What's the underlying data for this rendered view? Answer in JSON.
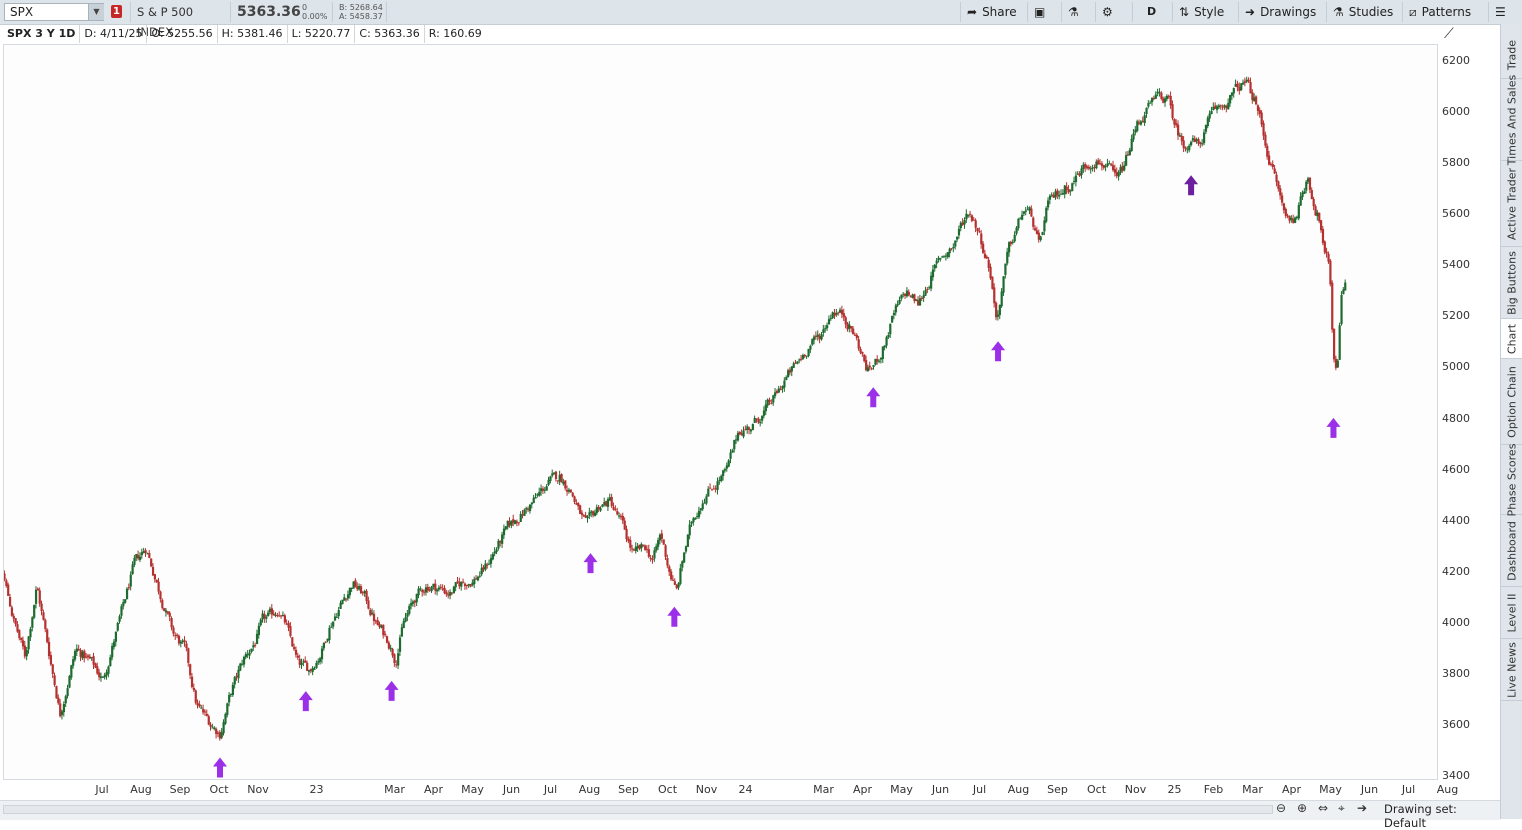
{
  "toolbar": {
    "symbol": "SPX",
    "badge": "1",
    "description": "S & P 500 INDEX",
    "last": "5363.36",
    "change": "0",
    "change_pct": "0.00%",
    "bid": "B: 5268.64",
    "ask": "A: 5458.37",
    "share": "Share",
    "timeframe": "D",
    "style": "Style",
    "drawings": "Drawings",
    "studies": "Studies",
    "patterns": "Patterns"
  },
  "info": {
    "title": "SPX 3 Y 1D",
    "date": "D: 4/11/25",
    "open": "O: 5255.56",
    "high": "H: 5381.46",
    "low": "L: 5220.77",
    "close": "C: 5363.36",
    "range": "R: 160.69"
  },
  "sidebar": {
    "tabs": [
      "Trade",
      "Times And Sales",
      "Active Trader",
      "Big Buttons",
      "Chart",
      "Option Chain",
      "Phase Scores",
      "Dashboard",
      "Level II",
      "Live News"
    ]
  },
  "footer": {
    "drawing_set": "Drawing set: Default"
  },
  "colors": {
    "up": "#1d6b2f",
    "down": "#b5312f",
    "arrow": "#9b30e8",
    "arrow_dark": "#6c1f9e"
  },
  "chart_data": {
    "type": "candlestick",
    "y_ticks": [
      "6200",
      "6000",
      "5800",
      "5600",
      "5400",
      "5200",
      "5000",
      "4800",
      "4600",
      "4400",
      "4200",
      "4000",
      "3800",
      "3600",
      "3400"
    ],
    "ylim": [
      3400,
      6250
    ],
    "x_ticks": [
      "Jul",
      "Aug",
      "Sep",
      "Oct",
      "Nov",
      "23",
      "Mar",
      "Apr",
      "May",
      "Jun",
      "Jul",
      "Aug",
      "Sep",
      "Oct",
      "Nov",
      "24",
      "Mar",
      "Apr",
      "May",
      "Jun",
      "Jul",
      "Aug",
      "Sep",
      "Oct",
      "Nov",
      "25",
      "Feb",
      "Mar",
      "Apr",
      "May",
      "Jun",
      "Jul",
      "Aug"
    ],
    "x_tick_months": [
      0.5,
      1.5,
      2.5,
      3.5,
      4.5,
      6,
      8,
      9,
      10,
      11,
      12,
      13,
      14,
      15,
      16,
      17,
      19,
      20,
      21,
      22,
      23,
      24,
      25,
      26,
      27,
      28,
      29,
      30,
      31,
      32,
      33,
      34,
      35
    ],
    "x_start_month": -2.6,
    "x_end_month": 35.4,
    "anchors": [
      [
        -2.6,
        4450
      ],
      [
        -2.2,
        4280
      ],
      [
        -1.8,
        4020
      ],
      [
        -1.5,
        3870
      ],
      [
        -1.2,
        4150
      ],
      [
        -0.9,
        3900
      ],
      [
        -0.6,
        3650
      ],
      [
        -0.2,
        3900
      ],
      [
        0.2,
        3850
      ],
      [
        0.5,
        3780
      ],
      [
        0.9,
        4000
      ],
      [
        1.3,
        4230
      ],
      [
        1.6,
        4300
      ],
      [
        2.0,
        4100
      ],
      [
        2.3,
        3960
      ],
      [
        2.6,
        3900
      ],
      [
        2.9,
        3680
      ],
      [
        3.3,
        3600
      ],
      [
        3.5,
        3570
      ],
      [
        3.8,
        3740
      ],
      [
        4.1,
        3860
      ],
      [
        4.4,
        3930
      ],
      [
        4.6,
        4010
      ],
      [
        4.8,
        4030
      ],
      [
        5.0,
        4060
      ],
      [
        5.2,
        3990
      ],
      [
        5.5,
        3840
      ],
      [
        5.8,
        3820
      ],
      [
        6.1,
        3890
      ],
      [
        6.3,
        3990
      ],
      [
        6.6,
        4080
      ],
      [
        6.9,
        4160
      ],
      [
        7.2,
        4110
      ],
      [
        7.5,
        4000
      ],
      [
        7.8,
        3940
      ],
      [
        8.0,
        3860
      ],
      [
        8.2,
        4000
      ],
      [
        8.5,
        4100
      ],
      [
        8.8,
        4150
      ],
      [
        9.1,
        4140
      ],
      [
        9.4,
        4120
      ],
      [
        9.7,
        4160
      ],
      [
        10.0,
        4170
      ],
      [
        10.3,
        4220
      ],
      [
        10.6,
        4300
      ],
      [
        10.9,
        4380
      ],
      [
        11.3,
        4440
      ],
      [
        11.6,
        4490
      ],
      [
        11.9,
        4550
      ],
      [
        12.2,
        4580
      ],
      [
        12.5,
        4520
      ],
      [
        12.7,
        4440
      ],
      [
        12.9,
        4380
      ],
      [
        13.2,
        4460
      ],
      [
        13.5,
        4480
      ],
      [
        13.8,
        4390
      ],
      [
        14.1,
        4270
      ],
      [
        14.4,
        4300
      ],
      [
        14.6,
        4250
      ],
      [
        14.8,
        4350
      ],
      [
        15.0,
        4220
      ],
      [
        15.2,
        4120
      ],
      [
        15.4,
        4280
      ],
      [
        15.6,
        4400
      ],
      [
        15.9,
        4500
      ],
      [
        16.2,
        4550
      ],
      [
        16.5,
        4600
      ],
      [
        16.8,
        4760
      ],
      [
        17.1,
        4770
      ],
      [
        17.4,
        4820
      ],
      [
        17.7,
        4880
      ],
      [
        18.0,
        4960
      ],
      [
        18.3,
        5020
      ],
      [
        18.6,
        5090
      ],
      [
        18.9,
        5130
      ],
      [
        19.2,
        5230
      ],
      [
        19.5,
        5210
      ],
      [
        19.8,
        5120
      ],
      [
        20.1,
        4990
      ],
      [
        20.3,
        5020
      ],
      [
        20.5,
        5080
      ],
      [
        20.8,
        5220
      ],
      [
        21.1,
        5300
      ],
      [
        21.4,
        5250
      ],
      [
        21.7,
        5350
      ],
      [
        22.0,
        5440
      ],
      [
        22.3,
        5480
      ],
      [
        22.5,
        5560
      ],
      [
        22.7,
        5620
      ],
      [
        22.9,
        5560
      ],
      [
        23.1,
        5460
      ],
      [
        23.25,
        5380
      ],
      [
        23.4,
        5200
      ],
      [
        23.5,
        5260
      ],
      [
        23.7,
        5450
      ],
      [
        23.9,
        5540
      ],
      [
        24.1,
        5620
      ],
      [
        24.3,
        5600
      ],
      [
        24.5,
        5470
      ],
      [
        24.7,
        5630
      ],
      [
        25.0,
        5690
      ],
      [
        25.3,
        5720
      ],
      [
        25.6,
        5780
      ],
      [
        25.9,
        5820
      ],
      [
        26.2,
        5800
      ],
      [
        26.5,
        5730
      ],
      [
        26.7,
        5800
      ],
      [
        27.0,
        5950
      ],
      [
        27.3,
        6020
      ],
      [
        27.6,
        6070
      ],
      [
        27.8,
        6050
      ],
      [
        28.0,
        5950
      ],
      [
        28.2,
        5870
      ],
      [
        28.4,
        5900
      ],
      [
        28.6,
        5870
      ],
      [
        28.8,
        5950
      ],
      [
        29.0,
        6010
      ],
      [
        29.3,
        6040
      ],
      [
        29.6,
        6100
      ],
      [
        29.8,
        6120
      ],
      [
        30.0,
        6060
      ],
      [
        30.2,
        5960
      ],
      [
        30.4,
        5820
      ],
      [
        30.6,
        5720
      ],
      [
        30.8,
        5600
      ],
      [
        31.0,
        5580
      ],
      [
        31.2,
        5650
      ],
      [
        31.4,
        5760
      ],
      [
        31.55,
        5640
      ],
      [
        31.7,
        5580
      ],
      [
        31.8,
        5450
      ],
      [
        31.95,
        5400
      ],
      [
        32.05,
        5050
      ],
      [
        32.15,
        5000
      ],
      [
        32.25,
        5300
      ],
      [
        32.35,
        5360
      ]
    ],
    "arrows": [
      {
        "x": 3.5,
        "price": 3500,
        "color": "#9b30e8"
      },
      {
        "x": 5.7,
        "price": 3760,
        "color": "#9b30e8"
      },
      {
        "x": 7.9,
        "price": 3800,
        "color": "#9b30e8"
      },
      {
        "x": 13.0,
        "price": 4300,
        "color": "#9b30e8"
      },
      {
        "x": 15.15,
        "price": 4090,
        "color": "#9b30e8"
      },
      {
        "x": 20.25,
        "price": 4950,
        "color": "#9b30e8"
      },
      {
        "x": 23.45,
        "price": 5130,
        "color": "#9b30e8"
      },
      {
        "x": 28.4,
        "price": 5780,
        "color": "#6c1f9e"
      },
      {
        "x": 32.05,
        "price": 4830,
        "color": "#9b30e8"
      }
    ]
  }
}
